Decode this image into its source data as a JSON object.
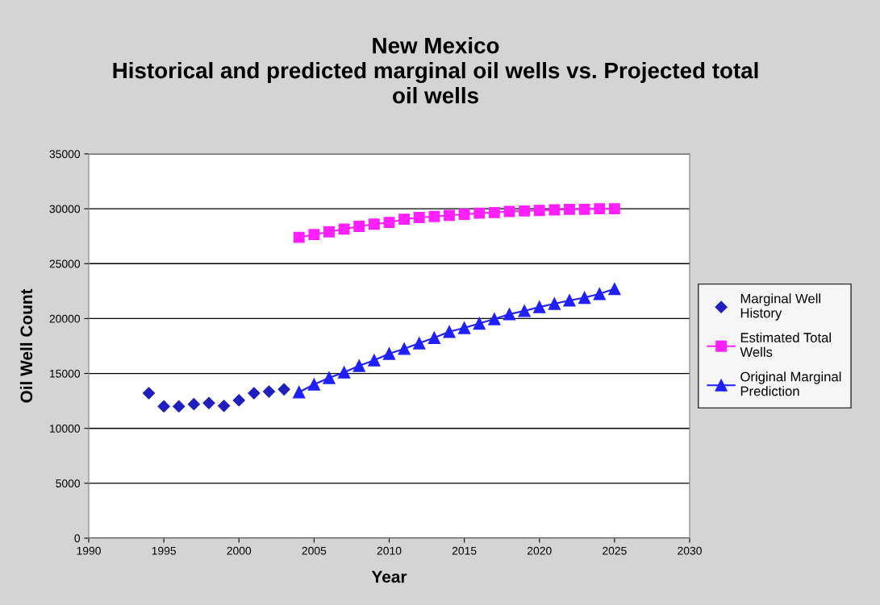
{
  "chart_data": {
    "type": "line",
    "title": "New Mexico\nHistorical and predicted marginal oil wells vs. Projected total\noil wells",
    "xlabel": "Year",
    "ylabel": "Oil Well Count",
    "xlim": [
      1990,
      2030
    ],
    "xticks": [
      1990,
      1995,
      2000,
      2005,
      2010,
      2015,
      2020,
      2025,
      2030
    ],
    "ylim": [
      0,
      35000
    ],
    "yticks": [
      0,
      5000,
      10000,
      15000,
      20000,
      25000,
      30000,
      35000
    ],
    "grid": "y",
    "legend": "right",
    "series": [
      {
        "name": "Marginal Well History",
        "type": "scatter",
        "marker": "diamond",
        "color": "#1f1fbf",
        "x": [
          1994,
          1995,
          1996,
          1997,
          1998,
          1999,
          2000,
          2001,
          2002,
          2003
        ],
        "values": [
          13200,
          12000,
          12000,
          12200,
          12300,
          12050,
          12550,
          13200,
          13350,
          13550
        ]
      },
      {
        "name": "Estimated Total Wells",
        "marker": "square",
        "color": "#ff1fff",
        "x": [
          2004,
          2005,
          2006,
          2007,
          2008,
          2009,
          2010,
          2011,
          2012,
          2013,
          2014,
          2015,
          2016,
          2017,
          2018,
          2019,
          2020,
          2021,
          2022,
          2023,
          2024,
          2025
        ],
        "values": [
          27400,
          27650,
          27900,
          28150,
          28400,
          28600,
          28750,
          29050,
          29200,
          29300,
          29400,
          29500,
          29600,
          29650,
          29750,
          29800,
          29850,
          29900,
          29950,
          29950,
          30000,
          30000
        ]
      },
      {
        "name": "Original Marginal Prediction",
        "marker": "triangle",
        "color": "#1f1fff",
        "x": [
          2004,
          2005,
          2006,
          2007,
          2008,
          2009,
          2010,
          2011,
          2012,
          2013,
          2014,
          2015,
          2016,
          2017,
          2018,
          2019,
          2020,
          2021,
          2022,
          2023,
          2024,
          2025
        ],
        "values": [
          13300,
          14000,
          14600,
          15100,
          15700,
          16200,
          16800,
          17250,
          17750,
          18250,
          18800,
          19150,
          19550,
          19950,
          20400,
          20700,
          21050,
          21350,
          21650,
          21900,
          22250,
          22700
        ]
      }
    ]
  }
}
